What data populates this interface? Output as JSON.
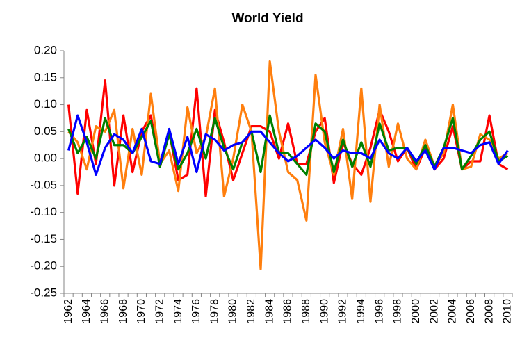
{
  "chart_data": {
    "type": "line",
    "title": "World Yield",
    "categories": [
      "1962",
      null,
      "1964",
      null,
      "1966",
      null,
      "1968",
      null,
      "1970",
      null,
      "1972",
      null,
      "1974",
      null,
      "1976",
      null,
      "1978",
      null,
      "1980",
      null,
      "1982",
      null,
      "1984",
      null,
      "1986",
      null,
      "1988",
      null,
      "1990",
      null,
      "1992",
      null,
      "1994",
      null,
      "1996",
      null,
      "1998",
      null,
      "2000",
      null,
      "2002",
      null,
      "2004",
      null,
      "2006",
      null,
      "2008",
      null,
      "2010"
    ],
    "ylim": [
      -0.25,
      0.2
    ],
    "yticks": [
      {
        "value": -0.25,
        "label": "-0.25"
      },
      {
        "value": -0.2,
        "label": "-0.20"
      },
      {
        "value": -0.15,
        "label": "-0.15"
      },
      {
        "value": -0.1,
        "label": "-0.10"
      },
      {
        "value": -0.05,
        "label": "-0.05"
      },
      {
        "value": 0,
        "label": "0.00"
      },
      {
        "value": 0.05,
        "label": "0.05"
      },
      {
        "value": 0.1,
        "label": "0.10"
      },
      {
        "value": 0.15,
        "label": "0.15"
      },
      {
        "value": 0.2,
        "label": "0.20"
      }
    ],
    "grid": false,
    "series": [
      {
        "color": "#ff0000",
        "values": [
          0.1,
          -0.065,
          0.09,
          -0.01,
          0.145,
          -0.05,
          0.08,
          -0.025,
          0.05,
          0.08,
          -0.015,
          0.05,
          -0.04,
          -0.03,
          0.13,
          -0.07,
          0.09,
          0.03,
          -0.04,
          0.01,
          0.06,
          0.06,
          0.05,
          0.0,
          0.065,
          -0.01,
          -0.01,
          0.05,
          0.075,
          -0.045,
          0.03,
          -0.01,
          -0.03,
          0.02,
          0.09,
          0.05,
          -0.005,
          0.02,
          -0.02,
          0.02,
          -0.02,
          0.0,
          0.06,
          -0.02,
          -0.005,
          -0.005,
          0.08,
          -0.01,
          -0.02
        ]
      },
      {
        "color": "#ff7f0e",
        "values": [
          0.05,
          0.03,
          -0.02,
          0.06,
          0.05,
          0.09,
          -0.055,
          0.055,
          -0.03,
          0.12,
          -0.01,
          0.015,
          -0.06,
          0.095,
          0.01,
          0.04,
          0.13,
          -0.07,
          0.0,
          0.1,
          0.05,
          -0.205,
          0.18,
          0.05,
          -0.025,
          -0.04,
          -0.115,
          0.155,
          0.03,
          -0.03,
          0.055,
          -0.075,
          0.13,
          -0.08,
          0.1,
          -0.015,
          0.065,
          0.0,
          -0.02,
          0.035,
          -0.015,
          0.01,
          0.1,
          -0.02,
          -0.015,
          0.045,
          0.035,
          0.0,
          0.01
        ]
      },
      {
        "color": "#008000",
        "values": [
          0.055,
          0.01,
          0.04,
          0.0,
          0.075,
          0.025,
          0.025,
          0.01,
          0.04,
          0.07,
          -0.015,
          0.045,
          -0.02,
          0.01,
          0.055,
          0.0,
          0.075,
          0.02,
          -0.02,
          0.03,
          0.05,
          -0.025,
          0.08,
          0.01,
          0.01,
          -0.01,
          -0.03,
          0.065,
          0.05,
          -0.025,
          0.035,
          -0.015,
          0.03,
          -0.015,
          0.065,
          0.015,
          0.02,
          0.02,
          -0.01,
          0.025,
          -0.015,
          0.02,
          0.075,
          -0.02,
          0.005,
          0.035,
          0.05,
          -0.005,
          0.005
        ]
      },
      {
        "color": "#0000ff",
        "values": [
          0.015,
          0.08,
          0.03,
          -0.03,
          0.02,
          0.045,
          0.035,
          0.01,
          0.055,
          -0.005,
          -0.01,
          0.055,
          -0.01,
          0.04,
          -0.025,
          0.045,
          0.035,
          0.015,
          0.025,
          0.03,
          0.05,
          0.05,
          0.03,
          0.01,
          -0.005,
          0.005,
          0.02,
          0.035,
          0.02,
          0.0,
          0.015,
          0.01,
          0.01,
          0.0,
          0.035,
          0.01,
          0.0,
          0.02,
          -0.005,
          0.015,
          -0.02,
          0.02,
          0.02,
          0.015,
          0.01,
          0.025,
          0.03,
          -0.01,
          0.015
        ]
      }
    ]
  }
}
